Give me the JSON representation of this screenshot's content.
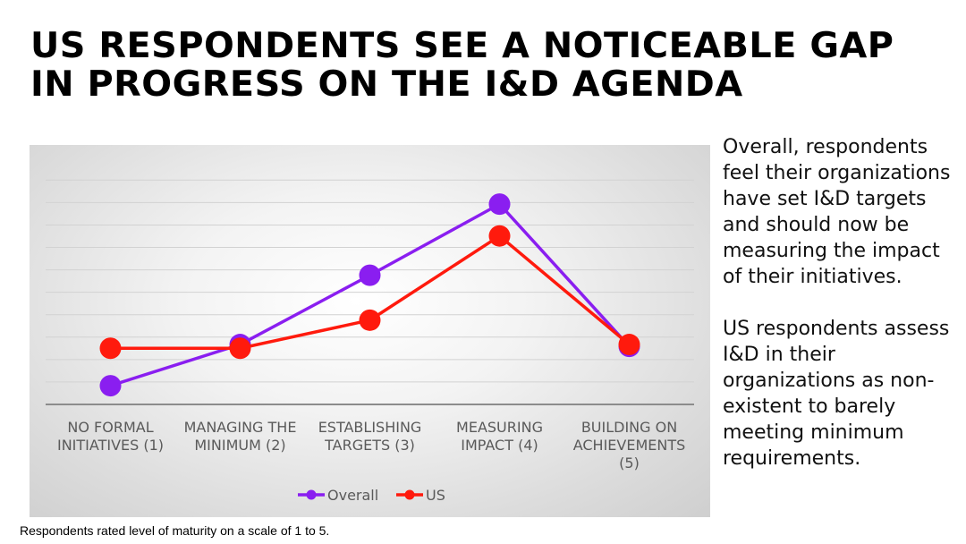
{
  "slide": {
    "title_line1": "US RESPONDENTS SEE A NOTICEABLE GAP",
    "title_line2": "IN PROGRESS ON THE I&D AGENDA",
    "side_paragraph1": "Overall, respondents feel their organizations have set I&D targets and should now be measuring  the impact of their initiatives.",
    "side_paragraph2": "US respondents assess I&D in their organizations as non-existent to barely meeting minimum requirements.",
    "footnote": "Respondents rated level of maturity on a scale of 1 to 5."
  },
  "chart_data": {
    "type": "line",
    "categories": [
      [
        "NO FORMAL",
        "INITIATIVES (1)"
      ],
      [
        "MANAGING THE",
        "MINIMUM (2)"
      ],
      [
        "ESTABLISHING",
        "TARGETS (3)"
      ],
      [
        "MEASURING",
        "IMPACT (4)"
      ],
      [
        "BUILDING ON",
        "ACHIEVEMENTS",
        "(5)"
      ]
    ],
    "series": [
      {
        "name": "Overall",
        "color": "#8a1ef0",
        "values": [
          1.0,
          3.2,
          6.9,
          10.7,
          3.1
        ]
      },
      {
        "name": "US",
        "color": "#ff1a0d",
        "values": [
          3.0,
          3.0,
          4.5,
          9.0,
          3.2
        ]
      }
    ],
    "ylim": [
      0,
      13
    ],
    "grid": true,
    "legend_position": "bottom-center",
    "title": "",
    "xlabel": "",
    "ylabel": ""
  }
}
